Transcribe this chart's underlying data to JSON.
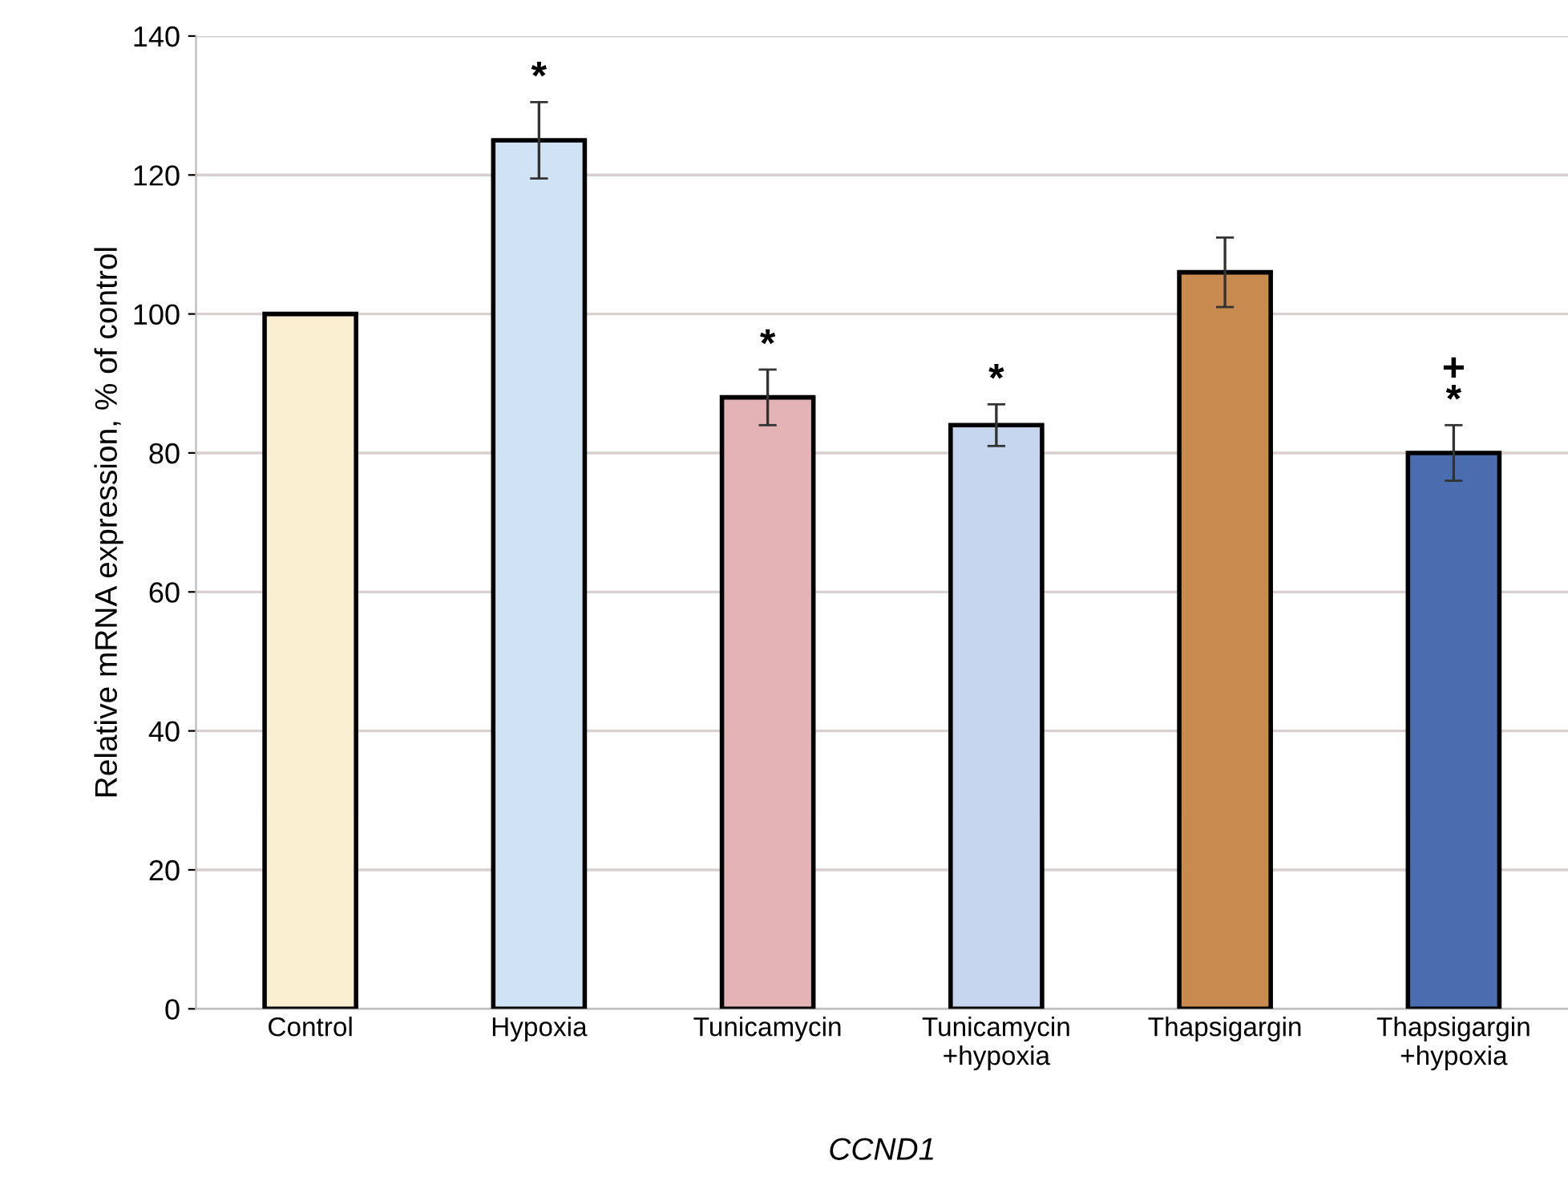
{
  "chart_data": {
    "type": "bar",
    "xlabel": "CCND1",
    "ylabel": "Relative mRNA expression, % of control",
    "categories": [
      "Control",
      "Hypoxia",
      "Tunicamycin",
      "Tunicamycin\n+hypoxia",
      "Thapsigargin",
      "Thapsigargin\n+hypoxia"
    ],
    "values": [
      100,
      125,
      88,
      84,
      106,
      80
    ],
    "errors": [
      null,
      5.5,
      4,
      3,
      5,
      4
    ],
    "colors": [
      "#fbefd2",
      "#cfe3f4",
      "#e3b3b5",
      "#c5d6ee",
      "#c98a4f",
      "#4a6db0"
    ],
    "ylim": [
      0,
      140
    ],
    "yticks": [
      0,
      20,
      40,
      60,
      80,
      100,
      120,
      140
    ],
    "grid": "y",
    "value_labels": [
      null,
      "*",
      "*",
      "*",
      null,
      "+\n*"
    ]
  }
}
